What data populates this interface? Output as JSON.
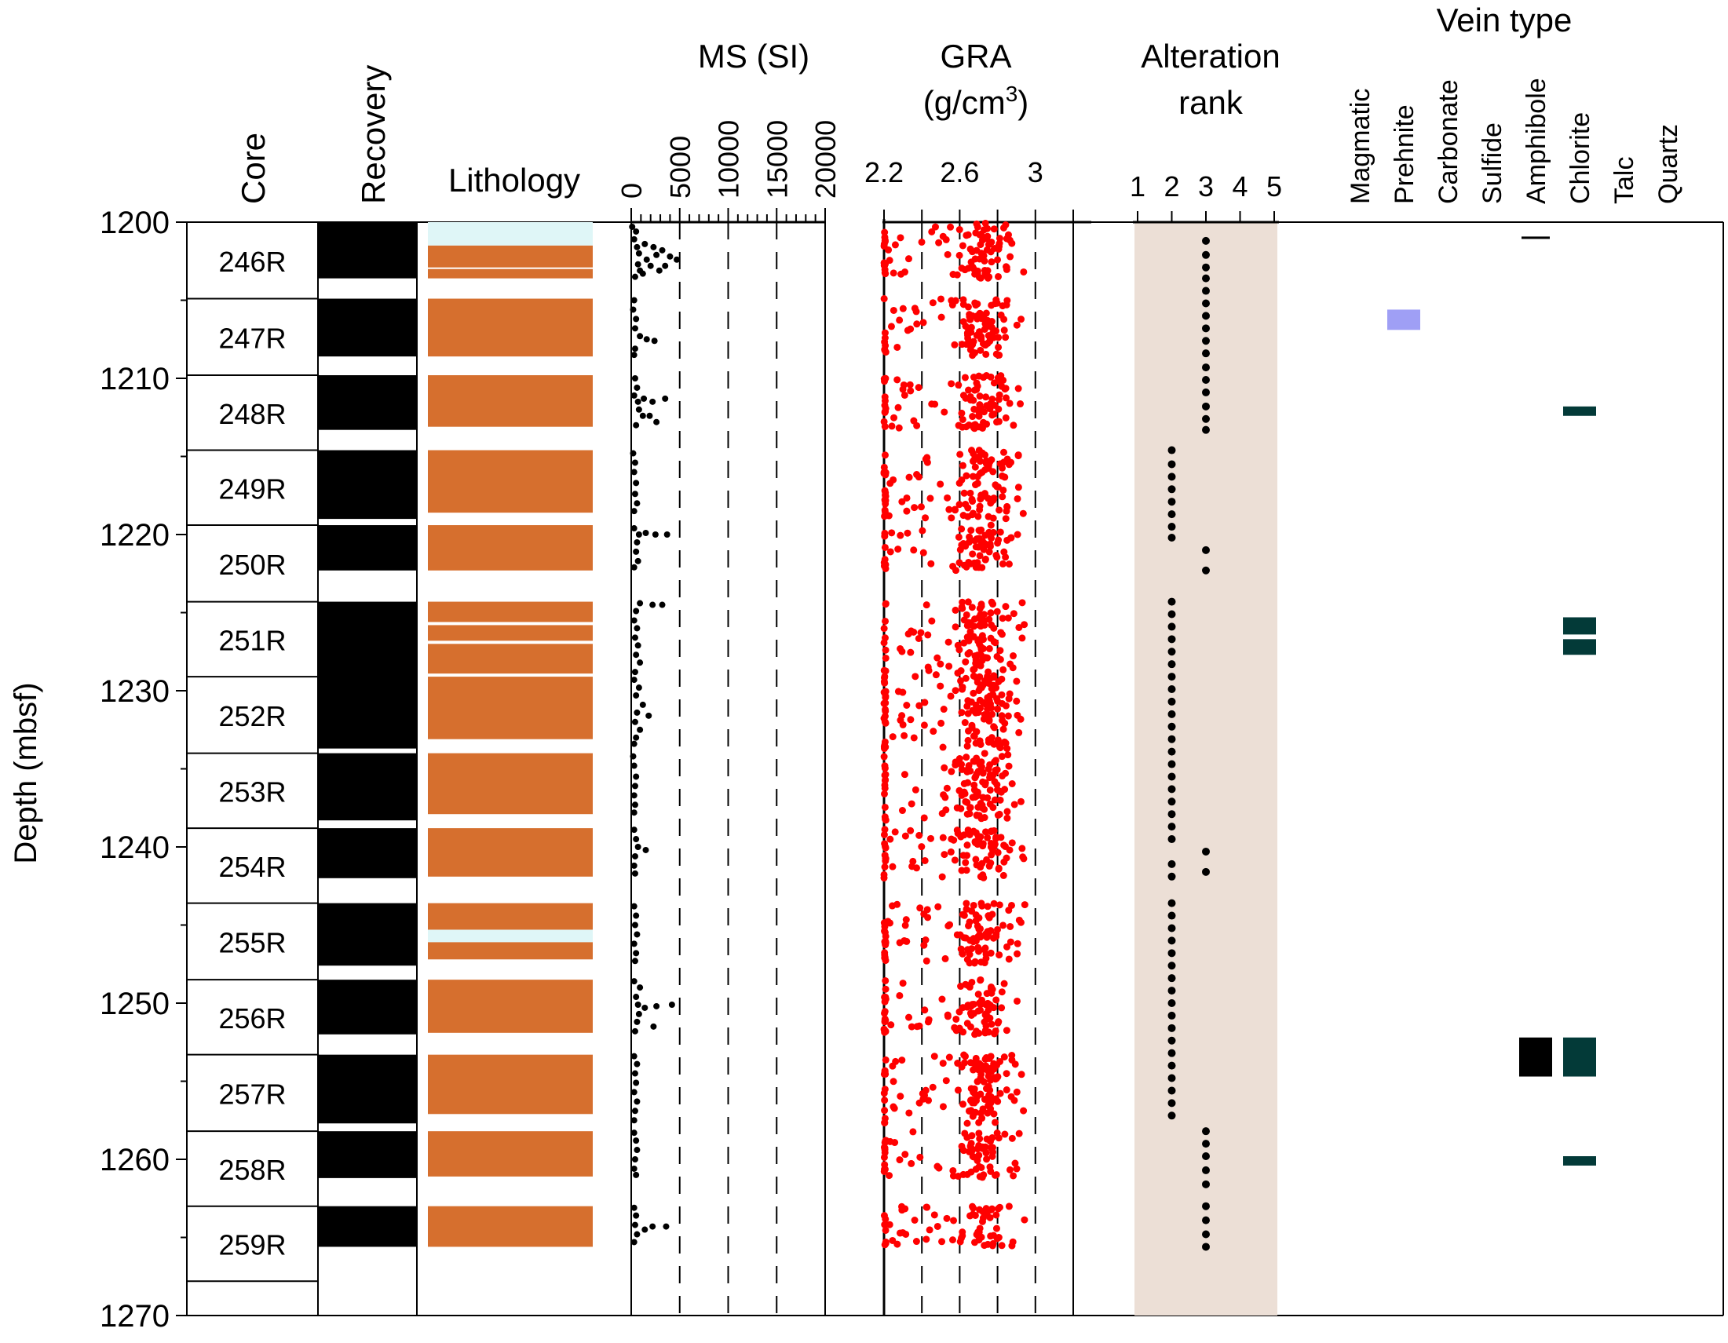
{
  "y_axis": {
    "label": "Depth (mbsf)",
    "min": 1200,
    "max": 1270,
    "ticks": [
      1200,
      1210,
      1220,
      1230,
      1240,
      1250,
      1260,
      1270
    ]
  },
  "headers": {
    "core": "Core",
    "recovery": "Recovery",
    "lithology": "Lithology",
    "ms": "MS (SI)",
    "gra_line1": "GRA",
    "gra_line2": "(g/cm",
    "gra_sup": "3",
    "gra_close": ")",
    "alteration_line1": "Alteration",
    "alteration_line2": "rank",
    "vein_type": "Vein type"
  },
  "colors": {
    "lithology_orange": "#d66f2e",
    "lithology_light": "#dff6f7",
    "alteration_band": "#ecdfd6",
    "gra_points": "#ff0000",
    "ms_points": "#000000",
    "prehnite": "#9f9ff5",
    "chlorite": "#033a38",
    "amphibole": "#000000"
  },
  "chart_data": [
    {
      "type": "table",
      "name": "Core",
      "columns": [
        "core",
        "top",
        "bottom"
      ],
      "rows": [
        [
          "246R",
          1200.0,
          1204.9
        ],
        [
          "247R",
          1204.9,
          1209.8
        ],
        [
          "248R",
          1209.8,
          1214.6
        ],
        [
          "249R",
          1214.6,
          1219.4
        ],
        [
          "250R",
          1219.4,
          1224.3
        ],
        [
          "251R",
          1224.3,
          1229.1
        ],
        [
          "252R",
          1229.1,
          1234.0
        ],
        [
          "253R",
          1234.0,
          1238.8
        ],
        [
          "254R",
          1238.8,
          1243.6
        ],
        [
          "255R",
          1243.6,
          1248.5
        ],
        [
          "256R",
          1248.5,
          1253.3
        ],
        [
          "257R",
          1253.3,
          1258.2
        ],
        [
          "258R",
          1258.2,
          1263.0
        ],
        [
          "259R",
          1263.0,
          1267.8
        ],
        [
          "",
          1267.8,
          1270.0
        ]
      ]
    },
    {
      "type": "bar",
      "name": "Recovery",
      "intervals": [
        [
          1200.0,
          1203.6
        ],
        [
          1204.9,
          1208.6
        ],
        [
          1209.8,
          1213.3
        ],
        [
          1214.6,
          1219.0
        ],
        [
          1219.4,
          1222.3
        ],
        [
          1224.3,
          1233.7
        ],
        [
          1234.0,
          1238.3
        ],
        [
          1238.8,
          1242.0
        ],
        [
          1243.6,
          1247.6
        ],
        [
          1248.5,
          1252.0
        ],
        [
          1253.3,
          1257.7
        ],
        [
          1258.2,
          1261.2
        ],
        [
          1263.0,
          1265.6
        ]
      ]
    },
    {
      "type": "bar",
      "name": "Lithology",
      "intervals": [
        {
          "top": 1200.0,
          "bottom": 1201.5,
          "kind": "light"
        },
        {
          "top": 1201.5,
          "bottom": 1202.9,
          "kind": "orange"
        },
        {
          "top": 1203.0,
          "bottom": 1203.6,
          "kind": "orange"
        },
        {
          "top": 1204.9,
          "bottom": 1208.6,
          "kind": "orange"
        },
        {
          "top": 1209.8,
          "bottom": 1213.1,
          "kind": "orange"
        },
        {
          "top": 1214.6,
          "bottom": 1218.6,
          "kind": "orange"
        },
        {
          "top": 1219.4,
          "bottom": 1222.3,
          "kind": "orange"
        },
        {
          "top": 1224.3,
          "bottom": 1225.6,
          "kind": "orange"
        },
        {
          "top": 1225.8,
          "bottom": 1226.8,
          "kind": "orange"
        },
        {
          "top": 1227.0,
          "bottom": 1228.9,
          "kind": "orange"
        },
        {
          "top": 1229.1,
          "bottom": 1233.1,
          "kind": "orange"
        },
        {
          "top": 1234.0,
          "bottom": 1237.9,
          "kind": "orange"
        },
        {
          "top": 1238.8,
          "bottom": 1241.9,
          "kind": "orange"
        },
        {
          "top": 1243.6,
          "bottom": 1245.3,
          "kind": "orange"
        },
        {
          "top": 1245.3,
          "bottom": 1246.1,
          "kind": "light"
        },
        {
          "top": 1246.1,
          "bottom": 1247.2,
          "kind": "orange"
        },
        {
          "top": 1248.5,
          "bottom": 1251.9,
          "kind": "orange"
        },
        {
          "top": 1253.3,
          "bottom": 1257.1,
          "kind": "orange"
        },
        {
          "top": 1258.2,
          "bottom": 1261.1,
          "kind": "orange"
        },
        {
          "top": 1263.0,
          "bottom": 1265.6,
          "kind": "orange"
        }
      ]
    },
    {
      "type": "scatter",
      "name": "MS (SI)",
      "xlim": [
        0,
        20000
      ],
      "x_ticks": [
        0,
        5000,
        10000,
        15000,
        20000
      ],
      "points": [
        [
          100,
          1200.3
        ],
        [
          500,
          1200.6
        ],
        [
          300,
          1201.1
        ],
        [
          1400,
          1201.4
        ],
        [
          600,
          1201.6
        ],
        [
          2300,
          1201.6
        ],
        [
          3200,
          1201.8
        ],
        [
          800,
          1202.0
        ],
        [
          2600,
          1202.1
        ],
        [
          4000,
          1202.2
        ],
        [
          1600,
          1202.4
        ],
        [
          4700,
          1202.4
        ],
        [
          700,
          1202.7
        ],
        [
          2000,
          1202.8
        ],
        [
          3500,
          1202.8
        ],
        [
          900,
          1203.1
        ],
        [
          2900,
          1203.1
        ],
        [
          1200,
          1203.3
        ],
        [
          400,
          1203.5
        ],
        [
          300,
          1205.0
        ],
        [
          200,
          1205.6
        ],
        [
          500,
          1206.2
        ],
        [
          400,
          1206.8
        ],
        [
          900,
          1207.3
        ],
        [
          1600,
          1207.5
        ],
        [
          2400,
          1207.6
        ],
        [
          400,
          1208.1
        ],
        [
          300,
          1208.5
        ],
        [
          400,
          1210.0
        ],
        [
          600,
          1210.6
        ],
        [
          300,
          1211.1
        ],
        [
          1300,
          1211.3
        ],
        [
          700,
          1211.5
        ],
        [
          2200,
          1211.5
        ],
        [
          3500,
          1211.3
        ],
        [
          800,
          1212.0
        ],
        [
          1200,
          1212.4
        ],
        [
          1900,
          1212.4
        ],
        [
          2600,
          1212.8
        ],
        [
          500,
          1213.0
        ],
        [
          200,
          1214.8
        ],
        [
          400,
          1215.4
        ],
        [
          300,
          1216.0
        ],
        [
          500,
          1216.7
        ],
        [
          400,
          1217.4
        ],
        [
          600,
          1218.0
        ],
        [
          300,
          1218.5
        ],
        [
          300,
          1219.6
        ],
        [
          800,
          1220.0
        ],
        [
          1500,
          1219.9
        ],
        [
          2500,
          1220.0
        ],
        [
          3700,
          1220.0
        ],
        [
          600,
          1220.5
        ],
        [
          500,
          1221.1
        ],
        [
          700,
          1221.7
        ],
        [
          300,
          1222.1
        ],
        [
          900,
          1224.4
        ],
        [
          2200,
          1224.5
        ],
        [
          3200,
          1224.5
        ],
        [
          500,
          1224.9
        ],
        [
          300,
          1225.5
        ],
        [
          600,
          1226.0
        ],
        [
          400,
          1226.6
        ],
        [
          700,
          1227.1
        ],
        [
          500,
          1227.7
        ],
        [
          900,
          1228.2
        ],
        [
          400,
          1228.8
        ],
        [
          300,
          1229.3
        ],
        [
          800,
          1229.8
        ],
        [
          500,
          1230.3
        ],
        [
          1200,
          1230.9
        ],
        [
          600,
          1231.4
        ],
        [
          1800,
          1231.6
        ],
        [
          400,
          1232.0
        ],
        [
          900,
          1232.5
        ],
        [
          500,
          1233.0
        ],
        [
          300,
          1233.4
        ],
        [
          200,
          1234.2
        ],
        [
          300,
          1234.8
        ],
        [
          500,
          1235.5
        ],
        [
          400,
          1236.1
        ],
        [
          300,
          1236.7
        ],
        [
          400,
          1237.3
        ],
        [
          300,
          1237.8
        ],
        [
          300,
          1238.9
        ],
        [
          500,
          1239.5
        ],
        [
          700,
          1240.0
        ],
        [
          1500,
          1240.2
        ],
        [
          400,
          1240.6
        ],
        [
          300,
          1241.2
        ],
        [
          400,
          1241.7
        ],
        [
          300,
          1243.8
        ],
        [
          500,
          1244.4
        ],
        [
          400,
          1245.0
        ],
        [
          600,
          1245.6
        ],
        [
          300,
          1246.2
        ],
        [
          500,
          1246.8
        ],
        [
          400,
          1247.3
        ],
        [
          300,
          1248.6
        ],
        [
          900,
          1249.0
        ],
        [
          500,
          1249.6
        ],
        [
          700,
          1250.1
        ],
        [
          1400,
          1250.3
        ],
        [
          2600,
          1250.2
        ],
        [
          4200,
          1250.1
        ],
        [
          800,
          1250.7
        ],
        [
          600,
          1251.2
        ],
        [
          2300,
          1251.5
        ],
        [
          400,
          1251.8
        ],
        [
          300,
          1253.4
        ],
        [
          600,
          1253.9
        ],
        [
          400,
          1254.5
        ],
        [
          500,
          1255.1
        ],
        [
          300,
          1255.7
        ],
        [
          600,
          1256.3
        ],
        [
          400,
          1256.9
        ],
        [
          300,
          1257.5
        ],
        [
          300,
          1258.3
        ],
        [
          500,
          1258.8
        ],
        [
          600,
          1259.4
        ],
        [
          400,
          1260.0
        ],
        [
          300,
          1260.6
        ],
        [
          500,
          1261.0
        ],
        [
          300,
          1263.1
        ],
        [
          500,
          1263.6
        ],
        [
          400,
          1264.2
        ],
        [
          1400,
          1264.5
        ],
        [
          2200,
          1264.3
        ],
        [
          600,
          1264.8
        ],
        [
          3600,
          1264.3
        ],
        [
          300,
          1265.3
        ]
      ]
    },
    {
      "type": "scatter",
      "name": "GRA (g/cm3)",
      "xlim": [
        2.2,
        3.2
      ],
      "x_ticks": [
        2.2,
        2.4,
        2.6,
        2.8,
        3.0,
        3.2
      ],
      "x_tick_labels": [
        "2.2",
        "2.6",
        "3"
      ],
      "intervals": [
        [
          1200.0,
          1203.6
        ],
        [
          1204.9,
          1208.6
        ],
        [
          1209.8,
          1213.3
        ],
        [
          1214.6,
          1219.0
        ],
        [
          1219.4,
          1222.3
        ],
        [
          1224.3,
          1233.7
        ],
        [
          1234.0,
          1238.3
        ],
        [
          1238.8,
          1242.0
        ],
        [
          1243.6,
          1247.6
        ],
        [
          1248.5,
          1252.0
        ],
        [
          1253.3,
          1257.7
        ],
        [
          1258.2,
          1261.2
        ],
        [
          1263.0,
          1265.6
        ]
      ],
      "cluster_center": 2.72,
      "cluster_spread": 0.1,
      "scatter_range": [
        2.22,
        2.95
      ],
      "baseline": 2.2,
      "max_value": 3.02
    },
    {
      "type": "scatter",
      "name": "Alteration rank",
      "xlim": [
        1,
        5
      ],
      "x_ticks": [
        1,
        2,
        3,
        4,
        5
      ],
      "points": [
        [
          3,
          1201.2
        ],
        [
          3,
          1202.1
        ],
        [
          3,
          1202.9
        ],
        [
          3,
          1203.6
        ],
        [
          3,
          1204.4
        ],
        [
          3,
          1205.2
        ],
        [
          3,
          1206.0
        ],
        [
          3,
          1206.8
        ],
        [
          3,
          1207.6
        ],
        [
          3,
          1208.4
        ],
        [
          3,
          1209.3
        ],
        [
          3,
          1210.1
        ],
        [
          3,
          1210.9
        ],
        [
          3,
          1211.8
        ],
        [
          3,
          1212.6
        ],
        [
          3,
          1213.3
        ],
        [
          2,
          1214.6
        ],
        [
          2,
          1215.5
        ],
        [
          2,
          1216.3
        ],
        [
          2,
          1217.1
        ],
        [
          2,
          1217.9
        ],
        [
          2,
          1218.7
        ],
        [
          2,
          1219.5
        ],
        [
          2,
          1220.2
        ],
        [
          3,
          1221.0
        ],
        [
          3,
          1222.3
        ],
        [
          2,
          1224.3
        ],
        [
          2,
          1225.1
        ],
        [
          2,
          1225.9
        ],
        [
          2,
          1226.7
        ],
        [
          2,
          1227.5
        ],
        [
          2,
          1228.3
        ],
        [
          2,
          1229.1
        ],
        [
          2,
          1229.9
        ],
        [
          2,
          1230.7
        ],
        [
          2,
          1231.5
        ],
        [
          2,
          1232.3
        ],
        [
          2,
          1233.1
        ],
        [
          2,
          1233.9
        ],
        [
          2,
          1234.7
        ],
        [
          2,
          1235.5
        ],
        [
          2,
          1236.3
        ],
        [
          2,
          1237.1
        ],
        [
          2,
          1237.9
        ],
        [
          2,
          1238.7
        ],
        [
          2,
          1239.5
        ],
        [
          3,
          1240.3
        ],
        [
          2,
          1241.1
        ],
        [
          3,
          1241.6
        ],
        [
          2,
          1241.9
        ],
        [
          2,
          1243.6
        ],
        [
          2,
          1244.4
        ],
        [
          2,
          1245.2
        ],
        [
          2,
          1246.0
        ],
        [
          2,
          1246.8
        ],
        [
          2,
          1247.6
        ],
        [
          2,
          1248.4
        ],
        [
          2,
          1249.2
        ],
        [
          2,
          1250.0
        ],
        [
          2,
          1250.8
        ],
        [
          2,
          1251.6
        ],
        [
          2,
          1252.4
        ],
        [
          2,
          1253.2
        ],
        [
          2,
          1254.0
        ],
        [
          2,
          1254.8
        ],
        [
          2,
          1255.6
        ],
        [
          2,
          1256.4
        ],
        [
          2,
          1257.2
        ],
        [
          3,
          1258.2
        ],
        [
          3,
          1259.0
        ],
        [
          3,
          1259.8
        ],
        [
          3,
          1260.7
        ],
        [
          3,
          1261.6
        ],
        [
          3,
          1263.0
        ],
        [
          3,
          1263.9
        ],
        [
          3,
          1264.8
        ],
        [
          3,
          1265.6
        ]
      ]
    },
    {
      "type": "bar",
      "name": "Vein type",
      "categories": [
        "Magmatic",
        "Prehnite",
        "Carbonate",
        "Sulfide",
        "Amphibole",
        "Chlorite",
        "Talc",
        "Quartz"
      ],
      "veins": [
        {
          "category": "Amphibole",
          "top": 1201.0,
          "bottom": 1201.1,
          "color": "#000000",
          "style": "line"
        },
        {
          "category": "Prehnite",
          "top": 1205.6,
          "bottom": 1206.9,
          "color": "#9f9ff5"
        },
        {
          "category": "Chlorite",
          "top": 1211.8,
          "bottom": 1212.4,
          "color": "#033a38"
        },
        {
          "category": "Chlorite",
          "top": 1225.3,
          "bottom": 1226.4,
          "color": "#033a38"
        },
        {
          "category": "Chlorite",
          "top": 1226.7,
          "bottom": 1227.7,
          "color": "#033a38"
        },
        {
          "category": "Amphibole",
          "top": 1252.2,
          "bottom": 1254.7,
          "color": "#000000"
        },
        {
          "category": "Chlorite",
          "top": 1252.2,
          "bottom": 1254.7,
          "color": "#033a38"
        },
        {
          "category": "Chlorite",
          "top": 1259.8,
          "bottom": 1260.4,
          "color": "#033a38"
        }
      ]
    }
  ]
}
